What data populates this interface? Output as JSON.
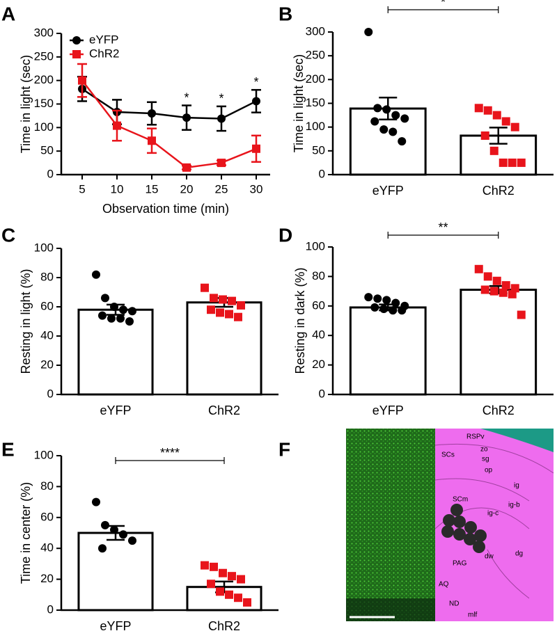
{
  "panel_labels": [
    "A",
    "B",
    "C",
    "D",
    "E",
    "F"
  ],
  "chart_data": [
    {
      "type": "line",
      "xlabel": "Observation time (min)",
      "ylabel": "Time in light (sec)",
      "x": [
        5,
        10,
        15,
        20,
        25,
        30
      ],
      "xlim": [
        2,
        32
      ],
      "xticks": [
        5,
        10,
        15,
        20,
        25,
        30
      ],
      "ylim": [
        0,
        300
      ],
      "yticks": [
        0,
        50,
        100,
        150,
        200,
        250,
        300
      ],
      "legend": "upper left",
      "series": [
        {
          "name": "eYFP",
          "color": "#000000",
          "marker": "circle",
          "values": [
            182,
            133,
            130,
            121,
            119,
            156
          ],
          "errors": [
            26,
            26,
            24,
            26,
            26,
            24
          ]
        },
        {
          "name": "ChR2",
          "color": "#e8141b",
          "marker": "square",
          "values": [
            200,
            104,
            72,
            15,
            25,
            55
          ],
          "errors": [
            35,
            32,
            26,
            4,
            5,
            28
          ]
        }
      ],
      "significance": [
        null,
        null,
        null,
        "*",
        "*",
        "*"
      ]
    },
    {
      "type": "bar",
      "ylabel": "Time in light (sec)",
      "categories": [
        "eYFP",
        "ChR2"
      ],
      "values": [
        139,
        82
      ],
      "errors": [
        23,
        17
      ],
      "ylim": [
        0,
        300
      ],
      "yticks": [
        0,
        50,
        100,
        150,
        200,
        250,
        300
      ],
      "point_colors": [
        "#000000",
        "#e8141b"
      ],
      "markers": [
        "circle",
        "square"
      ],
      "points": [
        [
          300,
          140,
          137,
          125,
          118,
          112,
          95,
          90,
          70
        ],
        [
          140,
          135,
          125,
          112,
          100,
          82,
          50,
          25,
          25,
          25
        ]
      ],
      "significance": "*"
    },
    {
      "type": "bar",
      "ylabel": "Resting in light (%)",
      "categories": [
        "eYFP",
        "ChR2"
      ],
      "values": [
        58,
        63
      ],
      "errors": [
        3.5,
        3
      ],
      "ylim": [
        0,
        100
      ],
      "yticks": [
        0,
        20,
        40,
        60,
        80,
        100
      ],
      "point_colors": [
        "#000000",
        "#e8141b"
      ],
      "markers": [
        "circle",
        "square"
      ],
      "points": [
        [
          82,
          66,
          60,
          58,
          57,
          54,
          52,
          52,
          50
        ],
        [
          73,
          66,
          65,
          64,
          61,
          58,
          56,
          55,
          53
        ]
      ],
      "significance": null
    },
    {
      "type": "bar",
      "ylabel": "Resting in dark (%)",
      "categories": [
        "eYFP",
        "ChR2"
      ],
      "values": [
        59,
        71
      ],
      "errors": [
        2,
        2.5
      ],
      "ylim": [
        0,
        100
      ],
      "yticks": [
        0,
        20,
        40,
        60,
        80,
        100
      ],
      "point_colors": [
        "#000000",
        "#e8141b"
      ],
      "markers": [
        "circle",
        "square"
      ],
      "points": [
        [
          66,
          65,
          64,
          62,
          60,
          59,
          58,
          57,
          57
        ],
        [
          85,
          80,
          77,
          74,
          72,
          71,
          70,
          69,
          68,
          54
        ]
      ],
      "significance": "**"
    },
    {
      "type": "bar",
      "ylabel": "Time in center (%)",
      "categories": [
        "eYFP",
        "ChR2"
      ],
      "values": [
        50,
        15
      ],
      "errors": [
        4.5,
        3.5
      ],
      "ylim": [
        0,
        100
      ],
      "yticks": [
        0,
        20,
        40,
        60,
        80,
        100
      ],
      "point_colors": [
        "#000000",
        "#e8141b"
      ],
      "markers": [
        "circle",
        "square"
      ],
      "points": [
        [
          70,
          55,
          52,
          49,
          45,
          40
        ],
        [
          29,
          28,
          24,
          22,
          20,
          17,
          12,
          10,
          8,
          5
        ]
      ],
      "significance": "****"
    }
  ],
  "image_panel": {
    "labels": [
      "RSPv",
      "zo",
      "sg",
      "op",
      "SCs",
      "ig",
      "ig-b",
      "SCm",
      "ig-c",
      "dw",
      "dg",
      "PAG",
      "AQ",
      "ND",
      "mlf"
    ]
  }
}
